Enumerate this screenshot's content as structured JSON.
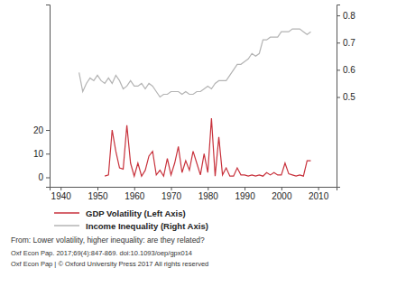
{
  "chart_data": {
    "type": "line",
    "x": [
      1945,
      1946,
      1947,
      1948,
      1949,
      1950,
      1951,
      1952,
      1953,
      1954,
      1955,
      1956,
      1957,
      1958,
      1959,
      1960,
      1961,
      1962,
      1963,
      1964,
      1965,
      1966,
      1967,
      1968,
      1969,
      1970,
      1971,
      1972,
      1973,
      1974,
      1975,
      1976,
      1977,
      1978,
      1979,
      1980,
      1981,
      1982,
      1983,
      1984,
      1985,
      1986,
      1987,
      1988,
      1989,
      1990,
      1991,
      1992,
      1993,
      1994,
      1995,
      1996,
      1997,
      1998,
      1999,
      2000,
      2001,
      2002,
      2003,
      2004,
      2005,
      2006,
      2007,
      2008
    ],
    "series": [
      {
        "name": "GDP Volatility (Left Axis)",
        "color": "#c8323c",
        "axis": "y",
        "values": [
          null,
          null,
          null,
          null,
          null,
          null,
          null,
          0.5,
          1,
          20,
          11,
          4,
          3.5,
          22,
          6,
          0.5,
          6,
          0.5,
          3,
          9,
          11,
          1,
          3,
          0.5,
          8,
          1,
          6,
          13,
          2,
          7,
          3,
          11,
          6,
          1,
          10,
          2,
          25,
          0.5,
          17,
          1,
          4,
          0.5,
          0.5,
          4,
          1,
          1,
          0.5,
          1,
          0.5,
          1,
          0.5,
          2,
          1,
          2,
          1,
          1,
          6,
          1.5,
          1,
          0.5,
          1,
          0.5,
          7,
          7
        ]
      },
      {
        "name": "Income Inequality (Right Axis)",
        "color": "#b4b4b4",
        "axis": "y2",
        "values": [
          0.59,
          0.52,
          0.55,
          0.57,
          0.56,
          0.58,
          0.56,
          0.55,
          0.57,
          0.55,
          0.58,
          0.56,
          0.53,
          0.54,
          0.56,
          0.54,
          0.54,
          0.55,
          0.53,
          0.55,
          0.54,
          0.52,
          0.5,
          0.51,
          0.51,
          0.52,
          0.52,
          0.52,
          0.51,
          0.52,
          0.51,
          0.51,
          0.52,
          0.52,
          0.53,
          0.54,
          0.53,
          0.55,
          0.56,
          0.56,
          0.56,
          0.58,
          0.6,
          0.62,
          0.62,
          0.63,
          0.64,
          0.66,
          0.65,
          0.66,
          0.71,
          0.71,
          0.72,
          0.72,
          0.72,
          0.74,
          0.74,
          0.74,
          0.75,
          0.75,
          0.75,
          0.74,
          0.73,
          0.74
        ]
      }
    ],
    "xlim": [
      1937,
      2015
    ],
    "xticks": [
      1940,
      1950,
      1960,
      1970,
      1980,
      1990,
      2000,
      2010
    ],
    "ylim": [
      -4,
      73
    ],
    "yticks": [
      0,
      10,
      20
    ],
    "y2lim": [
      0.17,
      0.84
    ],
    "y2ticks": [
      0.5,
      0.6,
      0.7,
      0.8
    ],
    "legend": "bottom",
    "grid": false,
    "annotations": [
      "From: Lower volatility, higher inequality: are they related?",
      "Oxf Econ Pap. 2017;69(4):847-869. doi:10.1093/oep/gpx014",
      "Oxf Econ Pap | © Oxford University Press 2017 All rights reserved"
    ]
  }
}
